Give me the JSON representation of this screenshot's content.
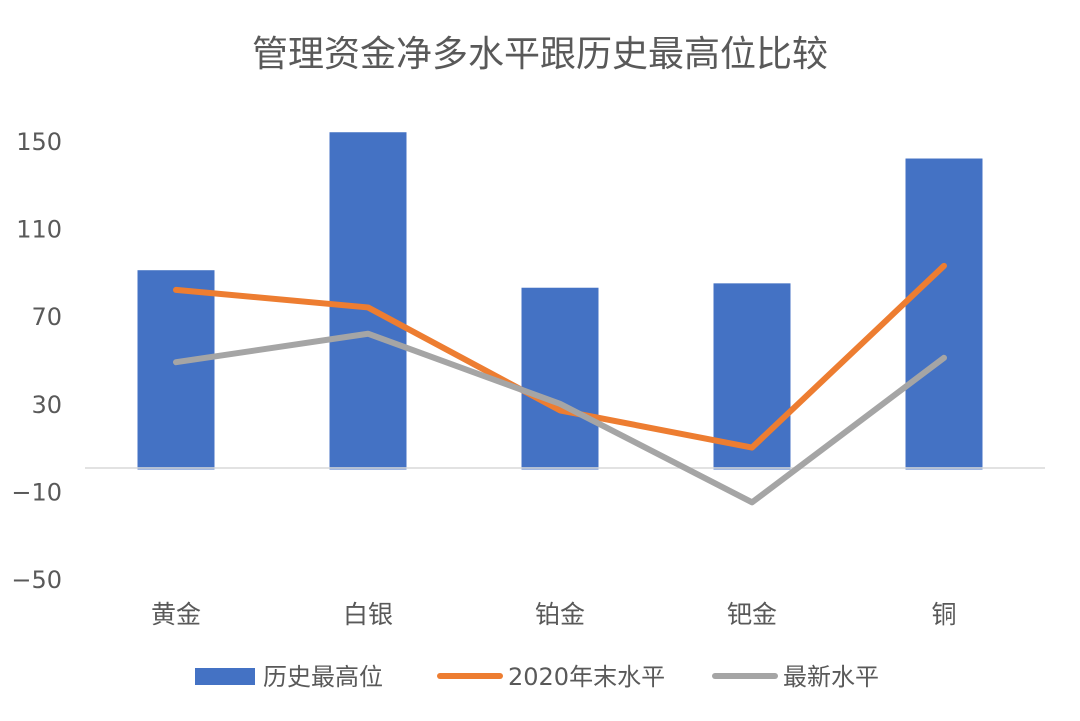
{
  "chart_data": {
    "type": "bar+line",
    "title": "管理资金净多水平跟历史最高位比较",
    "categories": [
      "黄金",
      "白银",
      "铂金",
      "钯金",
      "铜"
    ],
    "ylim": [
      -50,
      150
    ],
    "yticks": [
      "150",
      "110",
      "70",
      "30",
      "−10",
      "−50"
    ],
    "ytick_values": [
      150,
      110,
      70,
      30,
      -10,
      -50
    ],
    "grid": false,
    "legend": "bottom",
    "series": [
      {
        "name": "历史最高位",
        "kind": "bar",
        "color": "#4472C4",
        "values": [
          91,
          154,
          83,
          85,
          142
        ]
      },
      {
        "name": "2020年末水平",
        "kind": "line",
        "color": "#ED7D31",
        "values": [
          82,
          74,
          27,
          10,
          93
        ]
      },
      {
        "name": "最新水平",
        "kind": "line",
        "color": "#A5A5A5",
        "values": [
          49,
          62,
          30,
          -15,
          51
        ]
      }
    ]
  }
}
